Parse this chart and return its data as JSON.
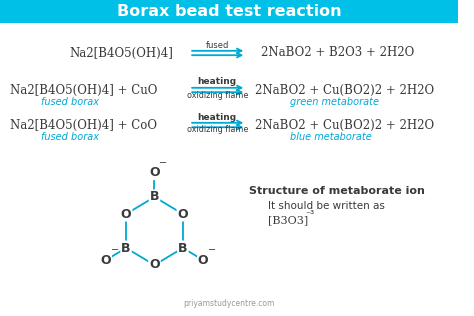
{
  "title": "Borax bead test reaction",
  "title_color": "#ffffff",
  "title_bg_color": "#00c0e8",
  "bg_color": "#ffffff",
  "dark_text_color": "#3a3a3a",
  "cyan_color": "#00a8d4",
  "structure_title": "Structure of metaborate ion",
  "structure_subtitle": "It should be written as",
  "structure_formula": "[B3O3]³",
  "watermark": "priyamstudycentre.com",
  "rxn1_reactant": "Na2[B4O5(OH)4]",
  "rxn1_product": "2NaBO2 + B2O3 + 2H2O",
  "rxn1_arrow_top": "fused",
  "rxn1_arrow_bot": "",
  "rxn2_reactant": "Na2[B4O5(OH)4] + CuO",
  "rxn2_product": "2NaBO2 + Cu(BO2)2 + 2H2O",
  "rxn2_arrow_top": "heating",
  "rxn2_arrow_bot": "oxidizing flame",
  "rxn2_rsub": "fused borax",
  "rxn2_psub": "green metaborate",
  "rxn3_reactant": "Na2[B4O5(OH)4] + CoO",
  "rxn3_product": "2NaBO2 + Cu(BO2)2 + 2H2O",
  "rxn3_arrow_top": "heating",
  "rxn3_arrow_bot": "oxidizing flame",
  "rxn3_rsub": "fused borax",
  "rxn3_psub": "blue metaborate"
}
